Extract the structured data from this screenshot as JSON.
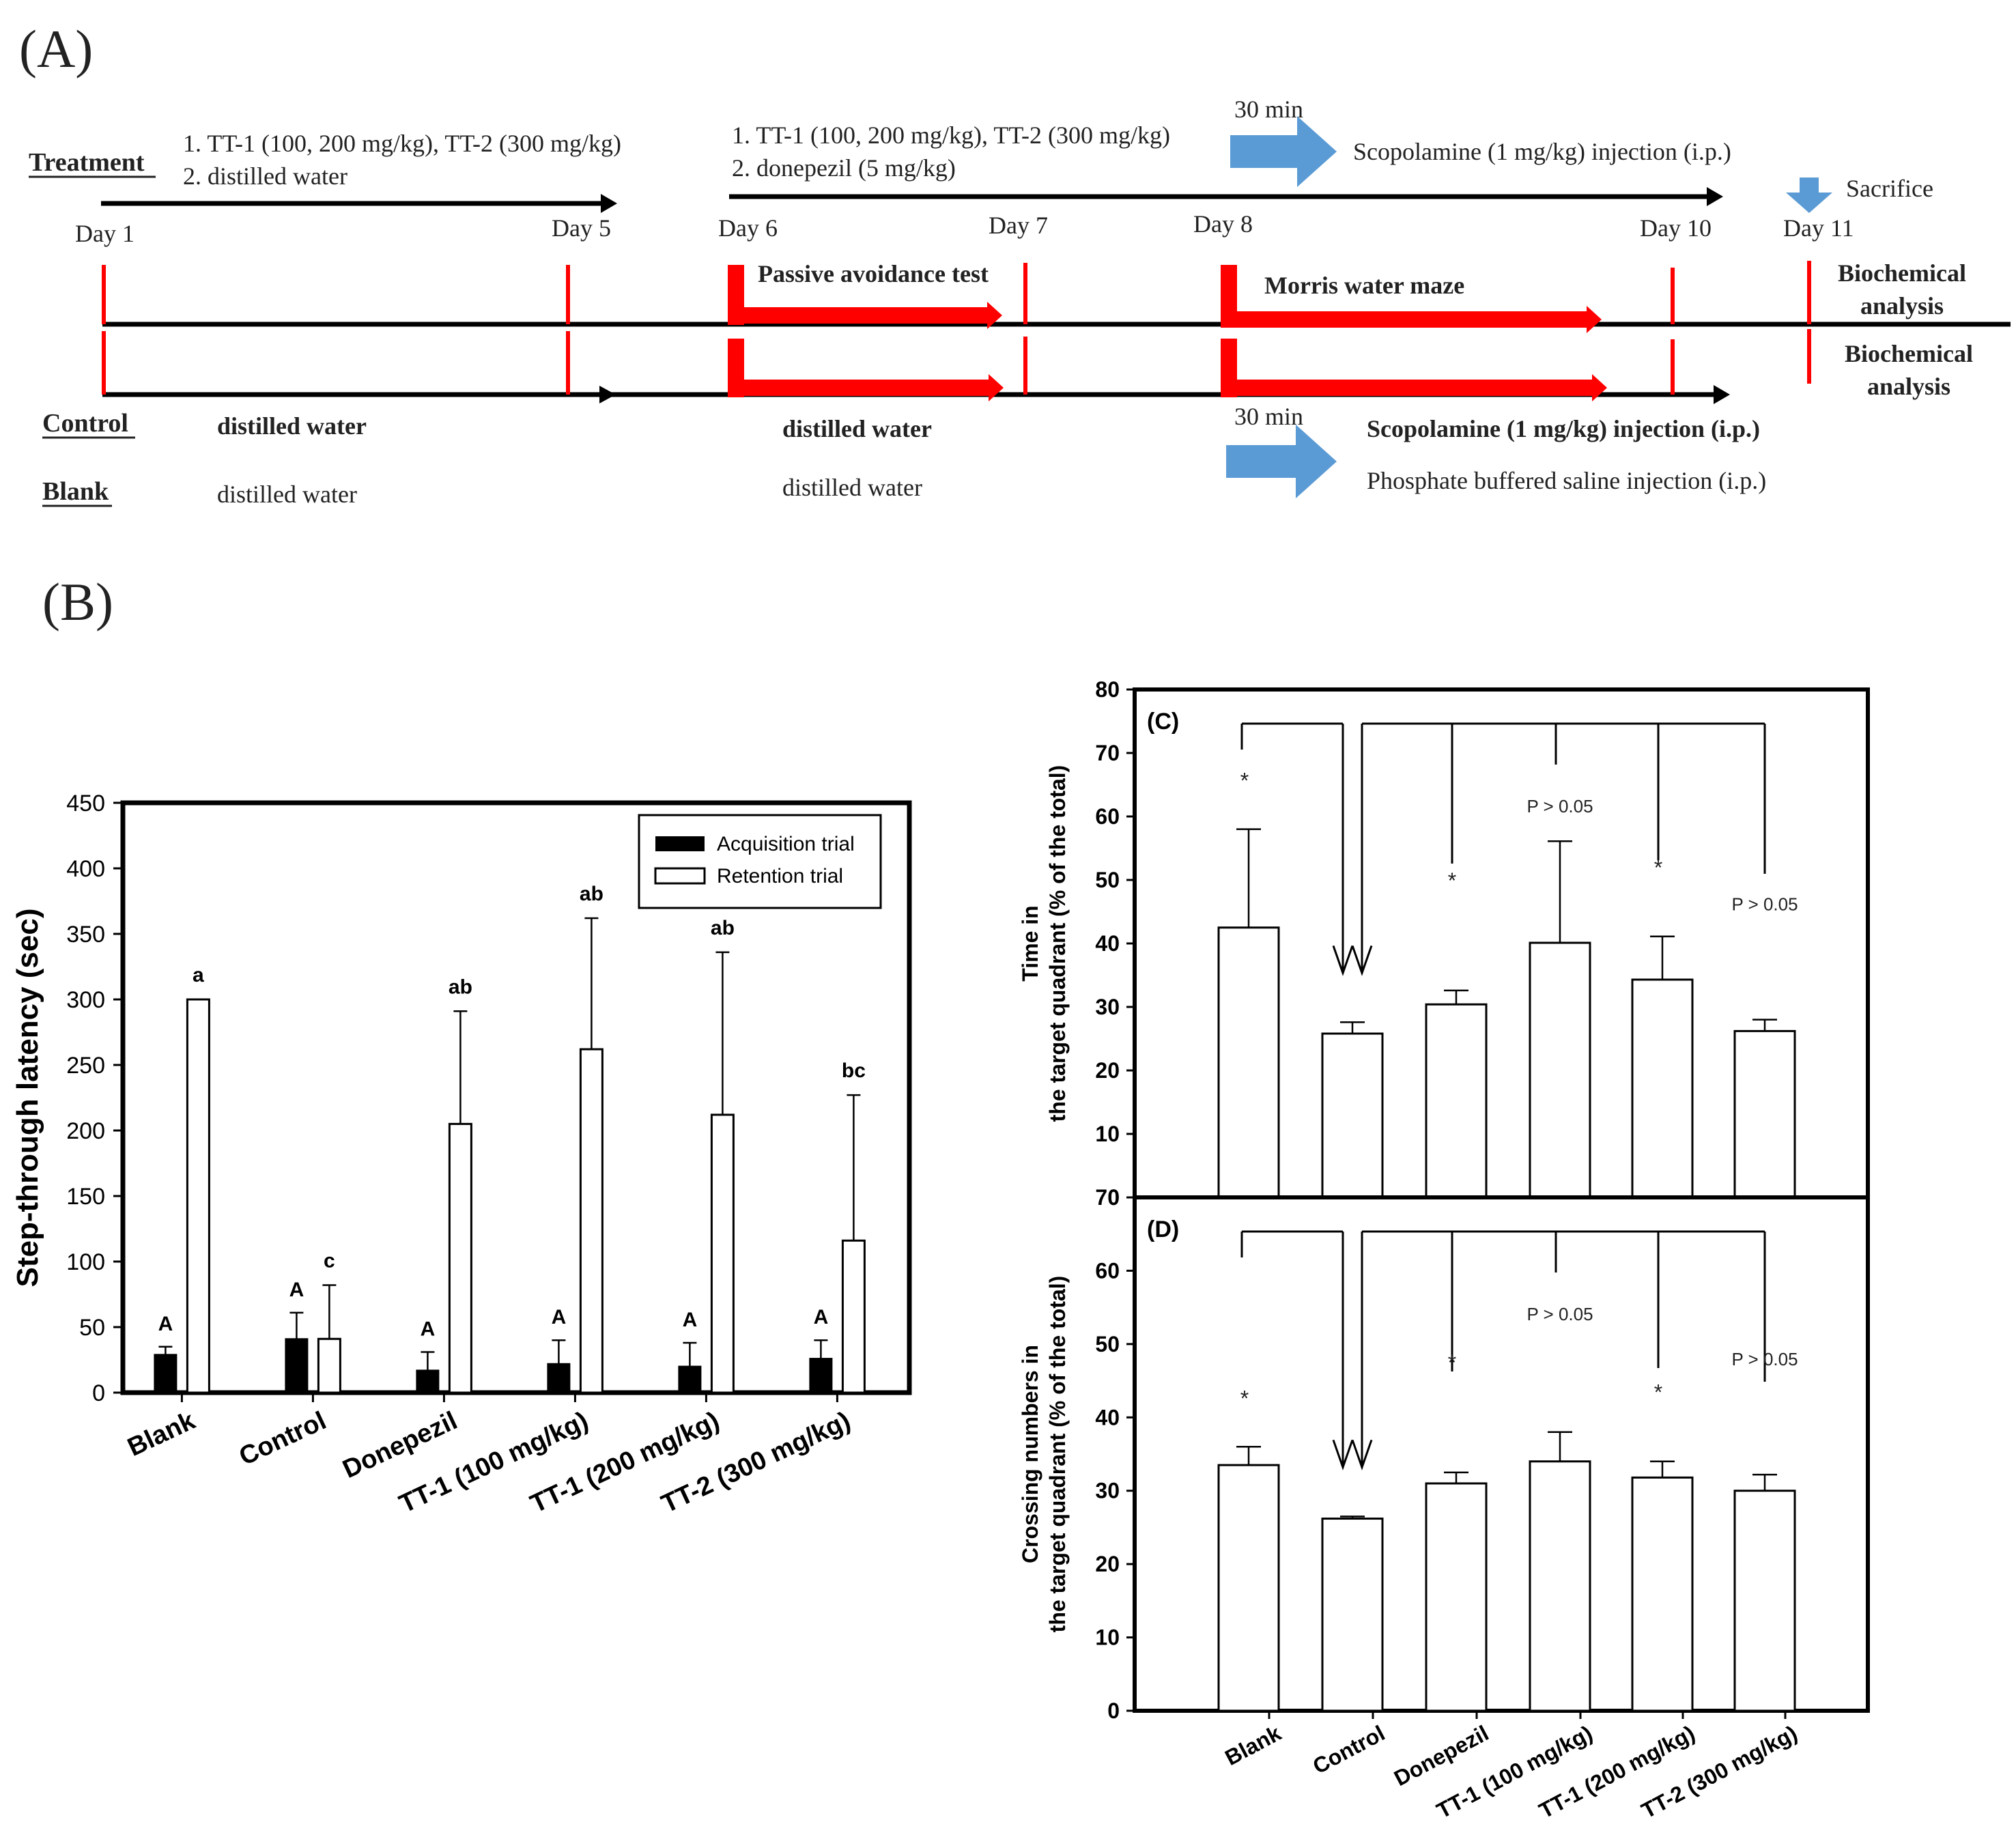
{
  "panel_a": {
    "label": "(A)",
    "treatment_label": "Treatment",
    "control_label": "Control",
    "blank_label": "Blank",
    "treatment_line1_a": "1. TT-1 (100, 200 mg/kg), TT-2 (300 mg/kg)",
    "treatment_line2_a": "2. distilled water",
    "treatment_line1_b": "1. TT-1 (100, 200 mg/kg), TT-2 (300 mg/kg)",
    "treatment_line2_b": "2. donepezil  (5 mg/kg)",
    "thirty_min_top": "30 min",
    "scop_top": "Scopolamine (1 mg/kg)  injection (i.p.)",
    "sacrifice": "Sacrifice",
    "day1": "Day 1",
    "day5": "Day 5",
    "day6": "Day 6",
    "day7": "Day 7",
    "day8": "Day 8",
    "day10": "Day 10",
    "day11": "Day 11",
    "passive_test": "Passive avoidance test",
    "morris": "Morris water maze",
    "biochem_line1": "Biochemical",
    "biochem_line2": "analysis",
    "control_dw1": "distilled  water",
    "control_dw2": "distilled  water",
    "thirty_min_bottom": "30 min",
    "scop_bottom": "Scopolamine (1 mg/kg) injection (i.p.)",
    "blank_dw1": "distilled water",
    "blank_dw2": "distilled water",
    "pbs": "Phosphate buffered saline injection (i.p.)",
    "colors": {
      "red": "#ff0000",
      "blue": "#5b9bd5",
      "black": "#000000"
    }
  },
  "panel_b_label": "(B)",
  "chart_data": [
    {
      "id": "B",
      "type": "bar",
      "title": "",
      "ylabel": "Step-through latency (sec)",
      "xlabel": "",
      "ylim": [
        0,
        450
      ],
      "yticks": [
        0,
        50,
        100,
        150,
        200,
        250,
        300,
        350,
        400,
        450
      ],
      "categories": [
        "Blank",
        "Control",
        "Donepezil",
        "TT-1 (100 mg/kg)",
        "TT-1 (200 mg/kg)",
        "TT-2 (300 mg/kg)"
      ],
      "legend": [
        "Acquisition trial",
        "Retention trial"
      ],
      "legend_position": "top-right",
      "series": [
        {
          "name": "Acquisition trial",
          "values": [
            29,
            41,
            17,
            22,
            20,
            26
          ],
          "errors": [
            6,
            20,
            14,
            18,
            18,
            14
          ],
          "labels": [
            "A",
            "A",
            "A",
            "A",
            "A",
            "A"
          ]
        },
        {
          "name": "Retention trial",
          "values": [
            300,
            41,
            205,
            262,
            212,
            116
          ],
          "errors": [
            0,
            41,
            86,
            100,
            124,
            111
          ],
          "labels": [
            "a",
            "c",
            "ab",
            "ab",
            "ab",
            "bc"
          ]
        }
      ]
    },
    {
      "id": "C",
      "type": "bar",
      "panel_label": "(C)",
      "ylabel_line1": "Time in",
      "ylabel_line2": "the target quadrant (% of the total)",
      "ylim": [
        0,
        80
      ],
      "yticks": [
        0,
        10,
        20,
        30,
        40,
        50,
        60,
        70,
        80
      ],
      "categories": [
        "Blank",
        "Control",
        "Donepezil",
        "TT-1 (100 mg/kg)",
        "TT-1 (200 mg/kg)",
        "TT-2 (300 mg/kg)"
      ],
      "values": [
        42.5,
        25.8,
        30.4,
        40.1,
        34.3,
        26.2
      ],
      "errors": [
        15.5,
        1.8,
        2.2,
        16.0,
        6.8,
        1.8
      ],
      "annotations": [
        "*",
        "",
        "*",
        "P > 0.05",
        "*",
        "P > 0.05"
      ]
    },
    {
      "id": "D",
      "type": "bar",
      "panel_label": "(D)",
      "ylabel_line1": "Crossing numbers in",
      "ylabel_line2": "the target quadrant (% of the total)",
      "ylim": [
        0,
        70
      ],
      "yticks": [
        0,
        10,
        20,
        30,
        40,
        50,
        60,
        70
      ],
      "categories": [
        "Blank",
        "Control",
        "Donepezil",
        "TT-1 (100 mg/kg)",
        "TT-1 (200 mg/kg)",
        "TT-2 (300 mg/kg)"
      ],
      "values": [
        33.5,
        26.2,
        31.0,
        34.0,
        31.8,
        30.0
      ],
      "errors": [
        2.5,
        0.3,
        1.5,
        4.0,
        2.2,
        2.2
      ],
      "annotations": [
        "*",
        "",
        "*",
        "P > 0.05",
        "*",
        "P > 0.05"
      ]
    }
  ]
}
